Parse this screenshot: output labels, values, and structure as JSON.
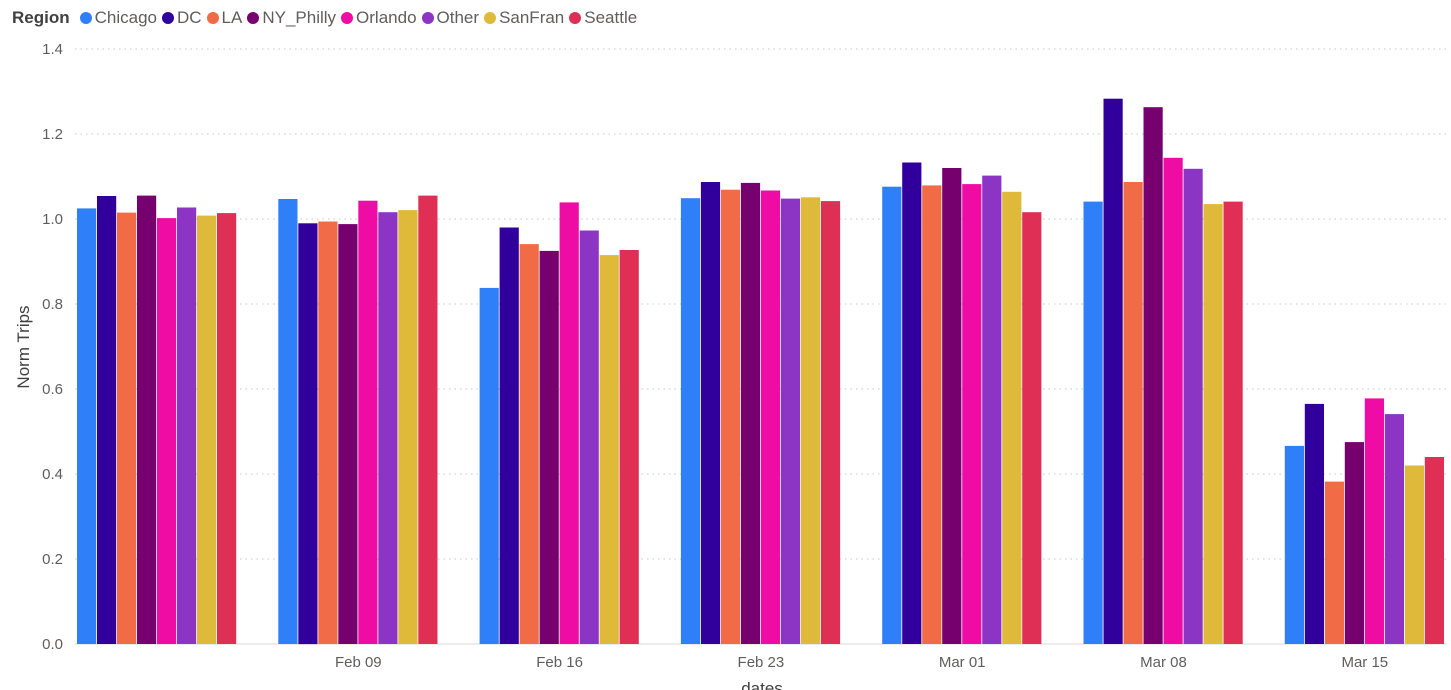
{
  "chart_data": {
    "type": "bar",
    "legend_title": "Region",
    "legend_position": "top-left",
    "xlabel": "dates",
    "ylabel": "Norm Trips",
    "ylim": [
      0,
      1.4
    ],
    "yticks": [
      "0.0",
      "0.2",
      "0.4",
      "0.6",
      "0.8",
      "1.0",
      "1.2",
      "1.4"
    ],
    "grid": true,
    "categories": [
      "",
      "Feb 09",
      "Feb 16",
      "Feb 23",
      "Mar 01",
      "Mar 08",
      "Mar 15"
    ],
    "series": [
      {
        "name": "Chicago",
        "color": "#2F80F8",
        "values": [
          1.025,
          1.047,
          0.838,
          1.049,
          1.076,
          1.041,
          0.466
        ]
      },
      {
        "name": "DC",
        "color": "#31009C",
        "values": [
          1.054,
          0.99,
          0.98,
          1.087,
          1.133,
          1.283,
          0.565
        ]
      },
      {
        "name": "LA",
        "color": "#F06B46",
        "values": [
          1.015,
          0.994,
          0.941,
          1.069,
          1.079,
          1.087,
          0.382
        ]
      },
      {
        "name": "NY_Philly",
        "color": "#75006E",
        "values": [
          1.055,
          0.988,
          0.925,
          1.085,
          1.12,
          1.263,
          0.475
        ]
      },
      {
        "name": "Orlando",
        "color": "#EE0CA4",
        "values": [
          1.002,
          1.043,
          1.039,
          1.067,
          1.082,
          1.144,
          0.578
        ]
      },
      {
        "name": "Other",
        "color": "#8C35C5",
        "values": [
          1.027,
          1.016,
          0.973,
          1.048,
          1.102,
          1.118,
          0.541
        ]
      },
      {
        "name": "SanFran",
        "color": "#DFB93A",
        "values": [
          1.008,
          1.021,
          0.915,
          1.051,
          1.064,
          1.035,
          0.42
        ]
      },
      {
        "name": "Seattle",
        "color": "#E02F55",
        "values": [
          1.014,
          1.055,
          0.927,
          1.042,
          1.016,
          1.041,
          0.44
        ]
      }
    ]
  }
}
